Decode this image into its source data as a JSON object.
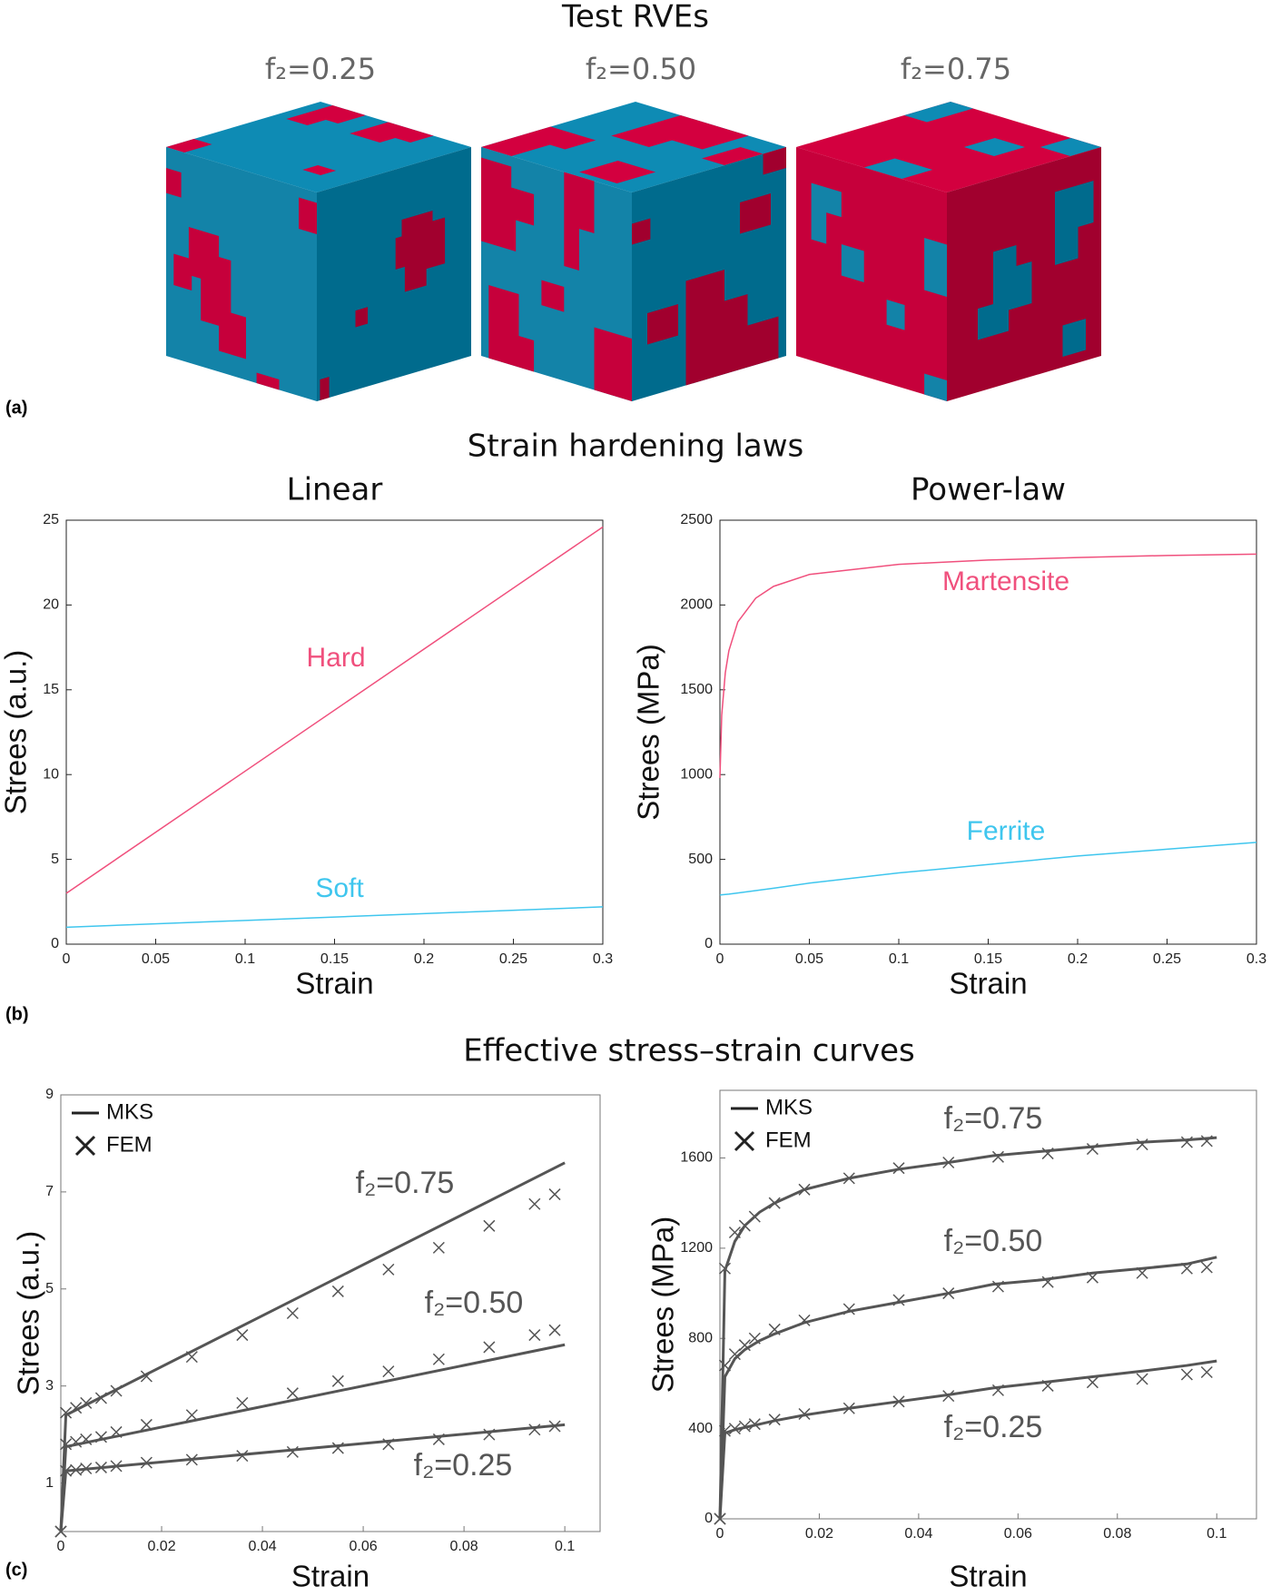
{
  "figure": {
    "title_a": "Test RVEs",
    "rve_labels": [
      "f₂=0.25",
      "f₂=0.50",
      "f₂=0.75"
    ],
    "panel_labels": [
      "(a)",
      "(b)",
      "(c)"
    ],
    "title_b": "Strain hardening laws",
    "title_c": "Effective stress–strain curves"
  },
  "chart_data": [
    {
      "type": "line",
      "title": "Linear",
      "xlabel": "Strain",
      "ylabel": "Strees (a.u.)",
      "x": [
        0,
        0.3
      ],
      "series": [
        {
          "name": "Hard",
          "color": "#f0507d",
          "values": [
            3,
            24.6
          ]
        },
        {
          "name": "Soft",
          "color": "#3fc6ee",
          "values": [
            1,
            2.2
          ]
        }
      ],
      "xlim": [
        0,
        0.3
      ],
      "ylim": [
        0,
        25
      ],
      "xticks": [
        0,
        0.05,
        0.1,
        0.15,
        0.2,
        0.25,
        0.3
      ],
      "yticks": [
        0,
        5,
        10,
        15,
        20,
        25
      ]
    },
    {
      "type": "line",
      "title": "Power-law",
      "xlabel": "Strain",
      "ylabel": "Strees (MPa)",
      "x": [
        0,
        0.001,
        0.003,
        0.005,
        0.01,
        0.02,
        0.03,
        0.05,
        0.1,
        0.15,
        0.2,
        0.25,
        0.3
      ],
      "series": [
        {
          "name": "Martensite",
          "color": "#f0507d",
          "values": [
            980,
            1350,
            1600,
            1730,
            1900,
            2040,
            2110,
            2180,
            2240,
            2265,
            2280,
            2292,
            2300
          ]
        },
        {
          "name": "Ferrite",
          "color": "#3fc6ee",
          "values": [
            290,
            291,
            293,
            295,
            302,
            316,
            330,
            360,
            420,
            470,
            520,
            560,
            600
          ]
        }
      ],
      "xlim": [
        0,
        0.3
      ],
      "ylim": [
        0,
        2500
      ],
      "xticks": [
        0,
        0.05,
        0.1,
        0.15,
        0.2,
        0.25,
        0.3
      ],
      "yticks": [
        0,
        500,
        1000,
        1500,
        2000,
        2500
      ]
    },
    {
      "type": "line",
      "xlabel": "Strain",
      "ylabel": "Strees (a.u.)",
      "legend": {
        "entries": [
          "MKS",
          "FEM"
        ],
        "position": "upper left"
      },
      "x": [
        0,
        0.001,
        0.1
      ],
      "fem_x": [
        0,
        0.001,
        0.003,
        0.005,
        0.008,
        0.011,
        0.017,
        0.026,
        0.036,
        0.046,
        0.055,
        0.065,
        0.075,
        0.085,
        0.094,
        0.098
      ],
      "series": [
        {
          "name": "f₂=0.75",
          "color": "#555555",
          "values": [
            0,
            2.4,
            7.6
          ],
          "fem_values": [
            0,
            2.45,
            2.55,
            2.65,
            2.75,
            2.9,
            3.2,
            3.6,
            4.05,
            4.5,
            4.95,
            5.4,
            5.85,
            6.3,
            6.75,
            6.95
          ]
        },
        {
          "name": "f₂=0.50",
          "color": "#555555",
          "values": [
            0,
            1.75,
            3.85
          ],
          "fem_values": [
            0,
            1.8,
            1.85,
            1.9,
            1.95,
            2.05,
            2.2,
            2.4,
            2.65,
            2.85,
            3.1,
            3.3,
            3.55,
            3.8,
            4.05,
            4.15
          ]
        },
        {
          "name": "f₂=0.25",
          "color": "#555555",
          "values": [
            0,
            1.25,
            2.2
          ],
          "fem_values": [
            0,
            1.25,
            1.27,
            1.3,
            1.32,
            1.35,
            1.42,
            1.48,
            1.56,
            1.64,
            1.72,
            1.8,
            1.9,
            2.0,
            2.1,
            2.17
          ]
        }
      ],
      "xlim": [
        0,
        0.107
      ],
      "ylim": [
        0,
        9
      ],
      "xticks": [
        0,
        0.02,
        0.04,
        0.06,
        0.08,
        0.1
      ],
      "yticks": [
        1,
        3,
        5,
        7,
        9
      ]
    },
    {
      "type": "line",
      "xlabel": "Strain",
      "ylabel": "Strees (MPa)",
      "legend": {
        "entries": [
          "MKS",
          "FEM"
        ],
        "position": "upper left"
      },
      "x": [
        0,
        0.001,
        0.003,
        0.005,
        0.008,
        0.011,
        0.017,
        0.026,
        0.036,
        0.046,
        0.055,
        0.065,
        0.075,
        0.085,
        0.094,
        0.1
      ],
      "fem_x": [
        0,
        0.001,
        0.003,
        0.005,
        0.007,
        0.011,
        0.017,
        0.026,
        0.036,
        0.046,
        0.056,
        0.066,
        0.075,
        0.085,
        0.094,
        0.098
      ],
      "series": [
        {
          "name": "f₂=0.75",
          "color": "#555555",
          "values": [
            0,
            1100,
            1230,
            1300,
            1360,
            1400,
            1460,
            1510,
            1550,
            1580,
            1610,
            1630,
            1650,
            1670,
            1680,
            1690
          ],
          "fem_values": [
            0,
            1110,
            1270,
            1300,
            1340,
            1400,
            1460,
            1510,
            1555,
            1580,
            1605,
            1620,
            1640,
            1660,
            1670,
            1675
          ]
        },
        {
          "name": "f₂=0.50",
          "color": "#555555",
          "values": [
            0,
            630,
            710,
            750,
            790,
            820,
            870,
            920,
            960,
            1000,
            1040,
            1060,
            1090,
            1110,
            1130,
            1160
          ],
          "fem_values": [
            0,
            680,
            730,
            770,
            800,
            840,
            880,
            930,
            970,
            1000,
            1030,
            1050,
            1070,
            1090,
            1110,
            1115
          ]
        },
        {
          "name": "f₂=0.25",
          "color": "#555555",
          "values": [
            0,
            380,
            395,
            405,
            420,
            435,
            460,
            490,
            520,
            550,
            580,
            605,
            630,
            655,
            680,
            700
          ],
          "fem_values": [
            0,
            390,
            400,
            410,
            420,
            440,
            465,
            490,
            520,
            545,
            570,
            590,
            605,
            620,
            640,
            650
          ]
        }
      ],
      "xlim": [
        0,
        0.108
      ],
      "ylim": [
        0,
        1900
      ],
      "xticks": [
        0,
        0.02,
        0.04,
        0.06,
        0.08,
        0.1
      ],
      "yticks": [
        0,
        400,
        800,
        1200,
        1600
      ]
    }
  ]
}
